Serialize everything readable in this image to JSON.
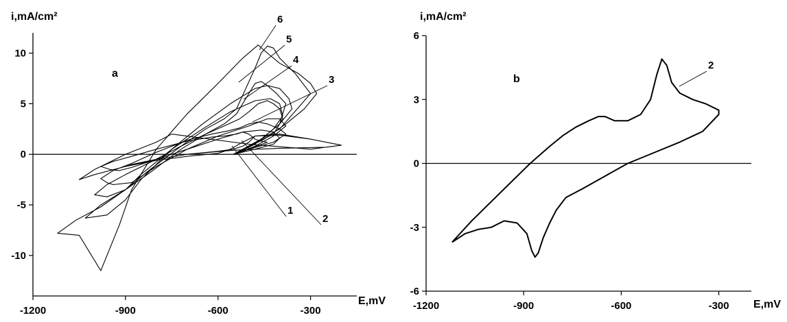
{
  "chart_data": [
    {
      "type": "line",
      "panel_label": "a",
      "xlabel": "E,mV",
      "ylabel": "i,mA/cm²",
      "xlim": [
        -1200,
        -150
      ],
      "ylim": [
        -14,
        12
      ],
      "x_ticks": [
        -1200,
        -900,
        -600,
        -300
      ],
      "y_ticks": [
        -10,
        -5,
        0,
        5,
        10
      ],
      "zero_line": true,
      "series": [
        {
          "name": "1",
          "x": [
            -750,
            -800,
            -900,
            -1000,
            -1050,
            -1000,
            -900,
            -800,
            -700,
            -600,
            -550,
            -520,
            -500,
            -480,
            -400,
            -300,
            -200,
            -250,
            -400,
            -550,
            -700,
            -800,
            -880,
            -900,
            -800,
            -700,
            -600,
            -560,
            -520,
            -480,
            -400,
            -300,
            -200,
            -300,
            -500,
            -750
          ],
          "y": [
            2.0,
            1.2,
            0.0,
            -1.5,
            -2.5,
            -2.0,
            -1.2,
            -0.5,
            0.0,
            0.3,
            0.5,
            0.8,
            1.2,
            1.8,
            1.9,
            1.5,
            0.9,
            0.7,
            0.6,
            0.4,
            0.0,
            -0.5,
            -1.0,
            -1.2,
            -0.6,
            -0.2,
            0.1,
            0.5,
            1.2,
            1.8,
            2.0,
            1.5,
            0.9,
            0.5,
            1.0,
            2.0
          ]
        },
        {
          "name": "2",
          "x": [
            -550,
            -480,
            -420,
            -400,
            -420,
            -460,
            -520,
            -600,
            -700,
            -800,
            -880,
            -920,
            -950,
            -980,
            -940,
            -880,
            -800,
            -700,
            -620,
            -580,
            -540,
            -520,
            -500,
            -480,
            -460,
            -440,
            -500,
            -550
          ],
          "y": [
            0.0,
            0.5,
            1.0,
            1.6,
            2.2,
            2.4,
            2.2,
            1.5,
            0.5,
            -0.5,
            -1.3,
            -1.6,
            -1.5,
            -1.2,
            -0.7,
            -0.2,
            0.5,
            1.3,
            1.7,
            1.8,
            2.0,
            2.2,
            2.0,
            1.5,
            1.3,
            1.2,
            0.5,
            0.0
          ]
        },
        {
          "name": "3",
          "x": [
            -550,
            -480,
            -420,
            -380,
            -400,
            -440,
            -500,
            -600,
            -700,
            -800,
            -880,
            -940,
            -960,
            -980,
            -940,
            -880,
            -800,
            -700,
            -620,
            -570,
            -530,
            -500,
            -470,
            -440,
            -400,
            -380,
            -420,
            -500,
            -550
          ],
          "y": [
            0.0,
            0.8,
            1.8,
            2.8,
            3.5,
            3.5,
            2.8,
            1.8,
            0.5,
            -1.2,
            -2.8,
            -3.0,
            -2.8,
            -2.4,
            -1.6,
            -0.9,
            0.2,
            1.4,
            2.0,
            2.3,
            2.6,
            3.0,
            3.2,
            3.0,
            2.5,
            2.0,
            1.2,
            0.5,
            0.0
          ]
        },
        {
          "name": "4",
          "x": [
            -550,
            -480,
            -420,
            -390,
            -400,
            -430,
            -480,
            -560,
            -650,
            -750,
            -850,
            -900,
            -960,
            -1000,
            -960,
            -900,
            -820,
            -720,
            -640,
            -580,
            -530,
            -500,
            -470,
            -440,
            -420,
            -400,
            -390,
            -420,
            -500,
            -550
          ],
          "y": [
            0.0,
            1.0,
            2.5,
            3.8,
            5.0,
            5.5,
            5.3,
            4.2,
            2.5,
            0.5,
            -2.0,
            -3.5,
            -4.2,
            -4.0,
            -3.0,
            -2.0,
            -0.8,
            0.8,
            2.0,
            2.8,
            3.5,
            4.2,
            5.0,
            5.3,
            5.0,
            4.5,
            3.5,
            2.0,
            0.8,
            0.0
          ]
        },
        {
          "name": "5",
          "x": [
            -550,
            -460,
            -400,
            -360,
            -370,
            -400,
            -440,
            -480,
            -560,
            -650,
            -750,
            -850,
            -900,
            -960,
            -1030,
            -980,
            -900,
            -820,
            -720,
            -640,
            -580,
            -540,
            -510,
            -480,
            -460,
            -440,
            -410,
            -380,
            -400,
            -460,
            -550
          ],
          "y": [
            0.0,
            1.5,
            3.0,
            4.5,
            5.5,
            6.5,
            6.8,
            6.5,
            5.0,
            3.0,
            0.5,
            -2.5,
            -4.5,
            -6.0,
            -6.3,
            -5.0,
            -3.5,
            -1.8,
            0.5,
            2.0,
            3.0,
            4.0,
            5.5,
            7.0,
            7.2,
            6.8,
            6.0,
            5.0,
            3.0,
            1.5,
            0.0
          ]
        },
        {
          "name": "6",
          "x": [
            -550,
            -450,
            -380,
            -320,
            -280,
            -300,
            -340,
            -400,
            -440,
            -470,
            -520,
            -600,
            -700,
            -800,
            -880,
            -920,
            -980,
            -1050,
            -1120,
            -1060,
            -980,
            -900,
            -820,
            -720,
            -640,
            -580,
            -540,
            -510,
            -480,
            -460,
            -440,
            -420,
            -400,
            -350,
            -300,
            -400,
            -550
          ],
          "y": [
            0.0,
            1.5,
            3.0,
            4.5,
            6.0,
            7.0,
            8.0,
            9.0,
            10.0,
            10.8,
            9.5,
            7.0,
            4.0,
            0.5,
            -3.5,
            -7.0,
            -11.5,
            -8.0,
            -7.8,
            -6.5,
            -5.2,
            -3.5,
            -1.5,
            0.8,
            2.5,
            3.5,
            4.5,
            6.5,
            8.5,
            10.0,
            10.7,
            10.5,
            9.5,
            8.0,
            6.0,
            2.5,
            0.0
          ]
        }
      ],
      "curve_labels": [
        "1",
        "2",
        "3",
        "4",
        "5",
        "6"
      ]
    },
    {
      "type": "line",
      "panel_label": "b",
      "xlabel": "E,mV",
      "ylabel": "i,mA/cm²",
      "xlim": [
        -1200,
        -200
      ],
      "ylim": [
        -6,
        6
      ],
      "x_ticks": [
        -1200,
        -900,
        -600,
        -300
      ],
      "y_ticks": [
        -6,
        -3,
        0,
        3,
        6
      ],
      "zero_line": true,
      "series": [
        {
          "name": "2",
          "x": [
            -1120,
            -1060,
            -1000,
            -940,
            -880,
            -820,
            -780,
            -740,
            -700,
            -670,
            -650,
            -620,
            -580,
            -540,
            -510,
            -490,
            -475,
            -460,
            -445,
            -420,
            -380,
            -340,
            -300,
            -300,
            -350,
            -420,
            -500,
            -580,
            -650,
            -720,
            -770,
            -800,
            -820,
            -840,
            -855,
            -865,
            -875,
            -890,
            -920,
            -960,
            -1000,
            -1040,
            -1080,
            -1120
          ],
          "y": [
            -3.7,
            -2.7,
            -1.8,
            -0.9,
            0.0,
            0.8,
            1.3,
            1.7,
            2.0,
            2.2,
            2.2,
            2.0,
            2.0,
            2.3,
            3.0,
            4.2,
            4.9,
            4.6,
            3.8,
            3.3,
            3.0,
            2.8,
            2.5,
            2.3,
            1.5,
            1.0,
            0.5,
            0.0,
            -0.6,
            -1.2,
            -1.6,
            -2.2,
            -2.8,
            -3.5,
            -4.2,
            -4.4,
            -4.1,
            -3.3,
            -2.8,
            -2.7,
            -3.0,
            -3.1,
            -3.3,
            -3.7
          ]
        }
      ],
      "curve_labels": [
        "2"
      ]
    }
  ]
}
